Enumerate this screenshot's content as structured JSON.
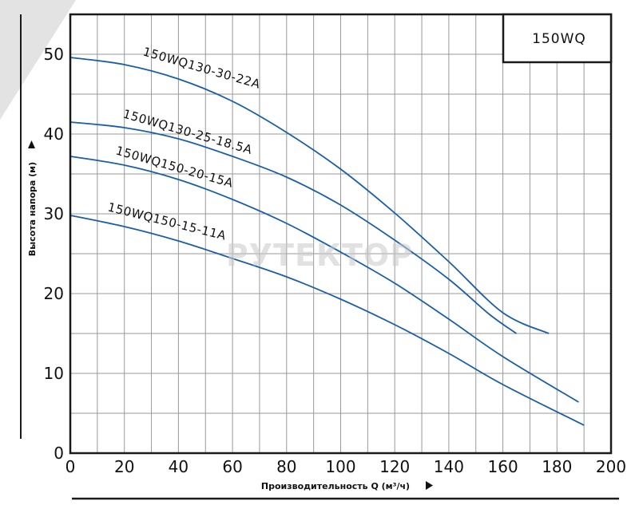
{
  "chart_data": {
    "type": "line",
    "title": "150WQ",
    "xlabel": "Производительность Q (м³/ч)",
    "ylabel": "Высота напора (м)",
    "xlim": [
      0,
      200
    ],
    "ylim": [
      0,
      55
    ],
    "x_ticks": [
      0,
      20,
      40,
      60,
      80,
      100,
      120,
      140,
      160,
      180,
      200
    ],
    "y_ticks": [
      0,
      10,
      20,
      30,
      40,
      50
    ],
    "grid": true,
    "legend_placement": "top-right",
    "watermark": "РУТЕКТОР",
    "series": [
      {
        "name": "150WQ130-30-22A",
        "color": "#1a5ea8",
        "points": [
          [
            0,
            49.6
          ],
          [
            20,
            48.7
          ],
          [
            40,
            46.9
          ],
          [
            60,
            44.1
          ],
          [
            80,
            40.2
          ],
          [
            100,
            35.6
          ],
          [
            120,
            30.1
          ],
          [
            140,
            24.0
          ],
          [
            160,
            17.6
          ],
          [
            177,
            15.0
          ]
        ]
      },
      {
        "name": "150WQ130-25-18.5A",
        "color": "#1a5ea8",
        "points": [
          [
            0,
            41.5
          ],
          [
            20,
            40.8
          ],
          [
            40,
            39.4
          ],
          [
            60,
            37.2
          ],
          [
            80,
            34.6
          ],
          [
            100,
            31.1
          ],
          [
            120,
            26.7
          ],
          [
            140,
            21.8
          ],
          [
            155,
            17.4
          ],
          [
            165,
            15.0
          ]
        ]
      },
      {
        "name": "150WQ150-20-15A",
        "color": "#1a5ea8",
        "points": [
          [
            0,
            37.2
          ],
          [
            20,
            36.1
          ],
          [
            40,
            34.3
          ],
          [
            60,
            31.8
          ],
          [
            80,
            28.8
          ],
          [
            100,
            25.2
          ],
          [
            120,
            21.3
          ],
          [
            140,
            16.8
          ],
          [
            160,
            12.1
          ],
          [
            188,
            6.4
          ]
        ]
      },
      {
        "name": "150WQ150-15-11A",
        "color": "#1a5ea8",
        "points": [
          [
            0,
            29.8
          ],
          [
            20,
            28.4
          ],
          [
            40,
            26.6
          ],
          [
            60,
            24.4
          ],
          [
            80,
            22.1
          ],
          [
            100,
            19.3
          ],
          [
            120,
            16.1
          ],
          [
            140,
            12.5
          ],
          [
            160,
            8.6
          ],
          [
            190,
            3.5
          ]
        ]
      }
    ]
  }
}
